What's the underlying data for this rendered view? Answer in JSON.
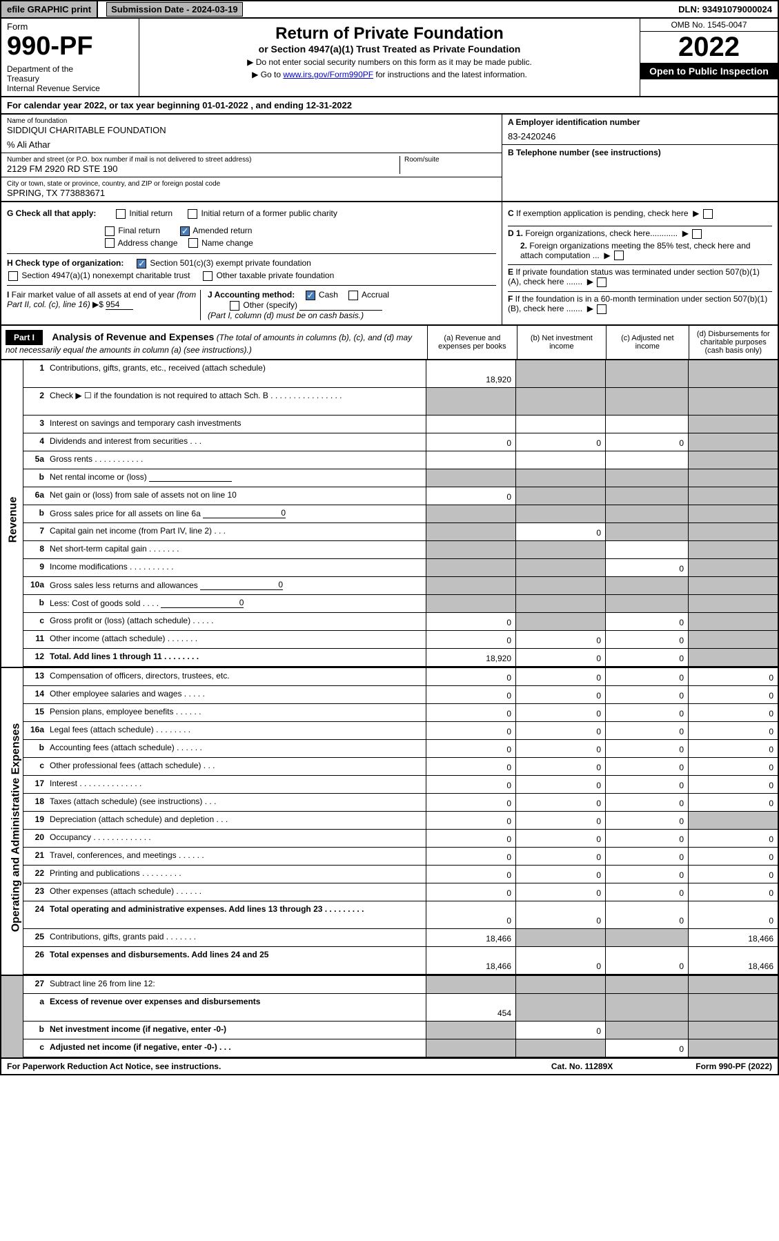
{
  "top": {
    "efile": "efile GRAPHIC print",
    "sub_date_label": "Submission Date - 2024-03-19",
    "dln": "DLN: 93491079000024"
  },
  "header": {
    "form_label": "Form",
    "form_num": "990-PF",
    "dept": "Department of the Treasury\nInternal Revenue Service",
    "title": "Return of Private Foundation",
    "subtitle": "or Section 4947(a)(1) Trust Treated as Private Foundation",
    "note1": "▶ Do not enter social security numbers on this form as it may be made public.",
    "note2_pre": "▶ Go to ",
    "note2_link": "www.irs.gov/Form990PF",
    "note2_post": " for instructions and the latest information.",
    "omb": "OMB No. 1545-0047",
    "year": "2022",
    "open_pub": "Open to Public Inspection"
  },
  "cal_year": "For calendar year 2022, or tax year beginning 01-01-2022                              , and ending 12-31-2022",
  "info": {
    "name_label": "Name of foundation",
    "name": "SIDDIQUI CHARITABLE FOUNDATION",
    "care_of": "% Ali Athar",
    "addr_label": "Number and street (or P.O. box number if mail is not delivered to street address)",
    "addr": "2129 FM 2920 RD STE 190",
    "room_label": "Room/suite",
    "city_label": "City or town, state or province, country, and ZIP or foreign postal code",
    "city": "SPRING, TX  773883671",
    "a_label": "A Employer identification number",
    "a_val": "83-2420246",
    "b_label": "B Telephone number (see instructions)",
    "c_label": "C If exemption application is pending, check here",
    "d1_label": "D 1. Foreign organizations, check here............",
    "d2_label": "2. Foreign organizations meeting the 85% test, check here and attach computation ...",
    "e_label": "E  If private foundation status was terminated under section 507(b)(1)(A), check here .......",
    "f_label": "F  If the foundation is in a 60-month termination under section 507(b)(1)(B), check here .......",
    "g_label": "G Check all that apply:",
    "g_initial": "Initial return",
    "g_initial_former": "Initial return of a former public charity",
    "g_final": "Final return",
    "g_amended": "Amended return",
    "g_addr": "Address change",
    "g_name": "Name change",
    "h_label": "H Check type of organization:",
    "h_501c3": "Section 501(c)(3) exempt private foundation",
    "h_4947": "Section 4947(a)(1) nonexempt charitable trust",
    "h_other": "Other taxable private foundation",
    "i_label": "I Fair market value of all assets at end of year (from Part II, col. (c), line 16) ▶$",
    "i_val": "954",
    "j_label": "J Accounting method:",
    "j_cash": "Cash",
    "j_accrual": "Accrual",
    "j_other": "Other (specify)",
    "j_note": "(Part I, column (d) must be on cash basis.)"
  },
  "part1": {
    "label": "Part I",
    "title": "Analysis of Revenue and Expenses",
    "title_note": "(The total of amounts in columns (b), (c), and (d) may not necessarily equal the amounts in column (a) (see instructions).)",
    "col_a": "(a)   Revenue and expenses per books",
    "col_b": "(b)   Net investment income",
    "col_c": "(c)   Adjusted net income",
    "col_d": "(d)   Disbursements for charitable purposes (cash basis only)"
  },
  "side_revenue": "Revenue",
  "side_expenses": "Operating and Administrative Expenses",
  "rows": [
    {
      "n": "1",
      "l": "Contributions, gifts, grants, etc., received (attach schedule)",
      "a": "18,920",
      "b": "",
      "c": "",
      "d": "",
      "ga": false,
      "gb": true,
      "gc": true,
      "gd": true,
      "tall": true
    },
    {
      "n": "2",
      "l": "Check ▶ ☐ if the foundation is not required to attach Sch. B     .   .   .   .   .   .   .   .   .   .   .   .   .   .   .   .",
      "a": "",
      "b": "",
      "c": "",
      "d": "",
      "ga": true,
      "gb": true,
      "gc": true,
      "gd": true,
      "tall": true
    },
    {
      "n": "3",
      "l": "Interest on savings and temporary cash investments",
      "a": "",
      "b": "",
      "c": "",
      "d": "",
      "ga": false,
      "gb": false,
      "gc": false,
      "gd": true
    },
    {
      "n": "4",
      "l": "Dividends and interest from securities     .   .   .",
      "a": "0",
      "b": "0",
      "c": "0",
      "d": "",
      "ga": false,
      "gb": false,
      "gc": false,
      "gd": true
    },
    {
      "n": "5a",
      "l": "Gross rents       .   .   .   .   .   .   .   .   .   .   .",
      "a": "",
      "b": "",
      "c": "",
      "d": "",
      "ga": false,
      "gb": false,
      "gc": false,
      "gd": true
    },
    {
      "n": "b",
      "l": "Net rental income or (loss)",
      "a": "",
      "b": "",
      "c": "",
      "d": "",
      "ga": true,
      "gb": true,
      "gc": true,
      "gd": true,
      "subline": true
    },
    {
      "n": "6a",
      "l": "Net gain or (loss) from sale of assets not on line 10",
      "a": "0",
      "b": "",
      "c": "",
      "d": "",
      "ga": false,
      "gb": true,
      "gc": true,
      "gd": true
    },
    {
      "n": "b",
      "l": "Gross sales price for all assets on line 6a",
      "a": "",
      "b": "",
      "c": "",
      "d": "",
      "ga": true,
      "gb": true,
      "gc": true,
      "gd": true,
      "subline": true,
      "subval": "0"
    },
    {
      "n": "7",
      "l": "Capital gain net income (from Part IV, line 2)   .   .   .",
      "a": "",
      "b": "0",
      "c": "",
      "d": "",
      "ga": true,
      "gb": false,
      "gc": true,
      "gd": true
    },
    {
      "n": "8",
      "l": "Net short-term capital gain   .   .   .   .   .   .   .",
      "a": "",
      "b": "",
      "c": "",
      "d": "",
      "ga": true,
      "gb": true,
      "gc": false,
      "gd": true
    },
    {
      "n": "9",
      "l": "Income modifications  .   .   .   .   .   .   .   .   .   .",
      "a": "",
      "b": "",
      "c": "0",
      "d": "",
      "ga": true,
      "gb": true,
      "gc": false,
      "gd": true
    },
    {
      "n": "10a",
      "l": "Gross sales less returns and allowances",
      "a": "",
      "b": "",
      "c": "",
      "d": "",
      "ga": true,
      "gb": true,
      "gc": true,
      "gd": true,
      "subline": true,
      "subval": "0"
    },
    {
      "n": "b",
      "l": "Less: Cost of goods sold     .   .   .   .",
      "a": "",
      "b": "",
      "c": "",
      "d": "",
      "ga": true,
      "gb": true,
      "gc": true,
      "gd": true,
      "subline": true,
      "subval": "0"
    },
    {
      "n": "c",
      "l": "Gross profit or (loss) (attach schedule)      .   .   .   .   .",
      "a": "0",
      "b": "",
      "c": "0",
      "d": "",
      "ga": false,
      "gb": true,
      "gc": false,
      "gd": true
    },
    {
      "n": "11",
      "l": "Other income (attach schedule)    .   .   .   .   .   .   .",
      "a": "0",
      "b": "0",
      "c": "0",
      "d": "",
      "ga": false,
      "gb": false,
      "gc": false,
      "gd": true
    },
    {
      "n": "12",
      "l": "Total. Add lines 1 through 11    .   .   .   .   .   .   .   .",
      "a": "18,920",
      "b": "0",
      "c": "0",
      "d": "",
      "ga": false,
      "gb": false,
      "gc": false,
      "gd": true,
      "bold": true
    }
  ],
  "exp_rows": [
    {
      "n": "13",
      "l": "Compensation of officers, directors, trustees, etc.",
      "a": "0",
      "b": "0",
      "c": "0",
      "d": "0"
    },
    {
      "n": "14",
      "l": "Other employee salaries and wages     .   .   .   .   .",
      "a": "0",
      "b": "0",
      "c": "0",
      "d": "0"
    },
    {
      "n": "15",
      "l": "Pension plans, employee benefits   .   .   .   .   .   .",
      "a": "0",
      "b": "0",
      "c": "0",
      "d": "0"
    },
    {
      "n": "16a",
      "l": "Legal fees (attach schedule)  .   .   .   .   .   .   .   .",
      "a": "0",
      "b": "0",
      "c": "0",
      "d": "0"
    },
    {
      "n": "b",
      "l": "Accounting fees (attach schedule)  .   .   .   .   .   .",
      "a": "0",
      "b": "0",
      "c": "0",
      "d": "0"
    },
    {
      "n": "c",
      "l": "Other professional fees (attach schedule)     .   .   .",
      "a": "0",
      "b": "0",
      "c": "0",
      "d": "0"
    },
    {
      "n": "17",
      "l": "Interest  .   .   .   .   .   .   .   .   .   .   .   .   .   .",
      "a": "0",
      "b": "0",
      "c": "0",
      "d": "0"
    },
    {
      "n": "18",
      "l": "Taxes (attach schedule) (see instructions)      .   .   .",
      "a": "0",
      "b": "0",
      "c": "0",
      "d": "0"
    },
    {
      "n": "19",
      "l": "Depreciation (attach schedule) and depletion    .   .   .",
      "a": "0",
      "b": "0",
      "c": "0",
      "d": "",
      "gd": true
    },
    {
      "n": "20",
      "l": "Occupancy  .   .   .   .   .   .   .   .   .   .   .   .   .",
      "a": "0",
      "b": "0",
      "c": "0",
      "d": "0"
    },
    {
      "n": "21",
      "l": "Travel, conferences, and meetings  .   .   .   .   .   .",
      "a": "0",
      "b": "0",
      "c": "0",
      "d": "0"
    },
    {
      "n": "22",
      "l": "Printing and publications  .   .   .   .   .   .   .   .   .",
      "a": "0",
      "b": "0",
      "c": "0",
      "d": "0"
    },
    {
      "n": "23",
      "l": "Other expenses (attach schedule)   .   .   .   .   .   .",
      "a": "0",
      "b": "0",
      "c": "0",
      "d": "0"
    },
    {
      "n": "24",
      "l": "Total operating and administrative expenses. Add lines 13 through 23    .   .   .   .   .   .   .   .   .",
      "a": "0",
      "b": "0",
      "c": "0",
      "d": "0",
      "bold": true,
      "tall": true
    },
    {
      "n": "25",
      "l": "Contributions, gifts, grants paid     .   .   .   .   .   .   .",
      "a": "18,466",
      "b": "",
      "c": "",
      "d": "18,466",
      "gb": true,
      "gc": true
    },
    {
      "n": "26",
      "l": "Total expenses and disbursements. Add lines 24 and 25",
      "a": "18,466",
      "b": "0",
      "c": "0",
      "d": "18,466",
      "bold": true,
      "tall": true
    }
  ],
  "bottom_rows": [
    {
      "n": "27",
      "l": "Subtract line 26 from line 12:",
      "a": "",
      "b": "",
      "c": "",
      "d": "",
      "ga": true,
      "gb": true,
      "gc": true,
      "gd": true
    },
    {
      "n": "a",
      "l": "Excess of revenue over expenses and disbursements",
      "a": "454",
      "b": "",
      "c": "",
      "d": "",
      "bold": true,
      "gb": true,
      "gc": true,
      "gd": true,
      "tall": true
    },
    {
      "n": "b",
      "l": "Net investment income (if negative, enter -0-)",
      "a": "",
      "b": "0",
      "c": "",
      "d": "",
      "bold": true,
      "ga": true,
      "gc": true,
      "gd": true
    },
    {
      "n": "c",
      "l": "Adjusted net income (if negative, enter -0-)    .   .   .",
      "a": "",
      "b": "",
      "c": "0",
      "d": "",
      "bold": true,
      "ga": true,
      "gb": true,
      "gd": true
    }
  ],
  "footer": {
    "left": "For Paperwork Reduction Act Notice, see instructions.",
    "mid": "Cat. No. 11289X",
    "right": "Form 990-PF (2022)"
  }
}
